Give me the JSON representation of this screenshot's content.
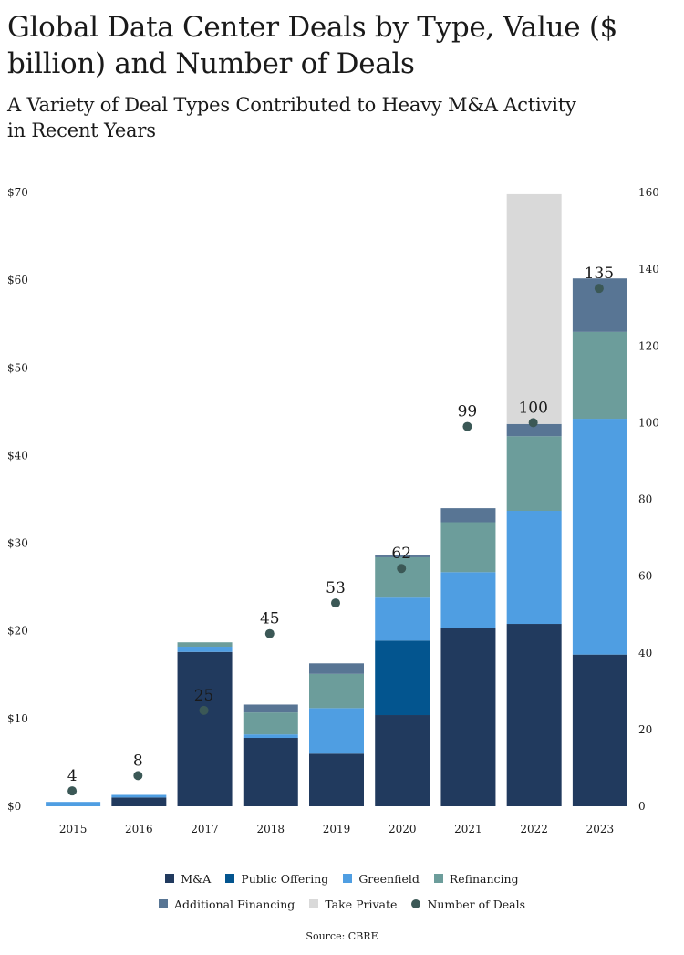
{
  "title": "Global Data Center Deals by Type, Value ($ billion) and Number of Deals",
  "subtitle": "A Variety of Deal Types Contributed to Heavy M&A Activity in Recent Years",
  "source": "Source: CBRE",
  "chart_data": {
    "type": "bar",
    "stacked": true,
    "categories": [
      "2015",
      "2016",
      "2017",
      "2018",
      "2019",
      "2020",
      "2021",
      "2022",
      "2023"
    ],
    "series": [
      {
        "name": "M&A",
        "color": "#213a5e",
        "values": [
          0,
          1,
          17.6,
          7.8,
          6,
          10.4,
          20.3,
          20.8,
          17.3
        ]
      },
      {
        "name": "Public Offering",
        "color": "#03558f",
        "values": [
          0,
          0,
          0,
          0,
          0,
          8.5,
          0,
          0,
          0
        ]
      },
      {
        "name": "Greenfield",
        "color": "#4f9ee2",
        "values": [
          0.5,
          0.3,
          0.6,
          0.4,
          5.2,
          4.9,
          6.4,
          12.9,
          26.9
        ]
      },
      {
        "name": "Refinancing",
        "color": "#6c9d9b",
        "values": [
          0,
          0,
          0.5,
          2.5,
          3.9,
          4.6,
          5.7,
          8.5,
          9.9
        ]
      },
      {
        "name": "Additional Financing",
        "color": "#587594",
        "values": [
          0,
          0,
          0,
          0.9,
          1.2,
          0.2,
          1.6,
          1.4,
          6.1
        ]
      },
      {
        "name": "Take Private",
        "color": "#d9d9d9",
        "values": [
          0,
          0,
          0,
          0,
          0,
          0,
          0,
          26.2,
          0
        ]
      }
    ],
    "deals": {
      "name": "Number of Deals",
      "color": "#3b5856",
      "values": [
        4,
        8,
        25,
        45,
        53,
        62,
        99,
        100,
        135
      ]
    },
    "left_axis": {
      "min": 0,
      "max": 70,
      "ticks": [
        "$0",
        "$10",
        "$20",
        "$30",
        "$40",
        "$50",
        "$60",
        "$70"
      ]
    },
    "right_axis": {
      "min": 0,
      "max": 160,
      "ticks": [
        "0",
        "20",
        "40",
        "60",
        "80",
        "100",
        "120",
        "140",
        "160"
      ]
    },
    "legend_position": "bottom"
  }
}
